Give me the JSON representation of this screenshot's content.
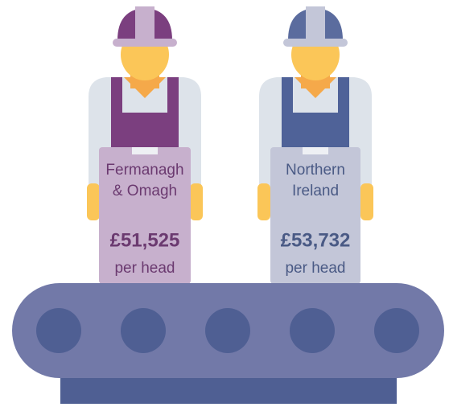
{
  "figures": [
    {
      "label_lines": [
        "Fermanagh",
        "& Omagh"
      ],
      "value": "£51,525",
      "unit": "per head"
    },
    {
      "label_lines": [
        "Northern",
        "Ireland"
      ],
      "value": "£53,732",
      "unit": "per head"
    }
  ]
}
